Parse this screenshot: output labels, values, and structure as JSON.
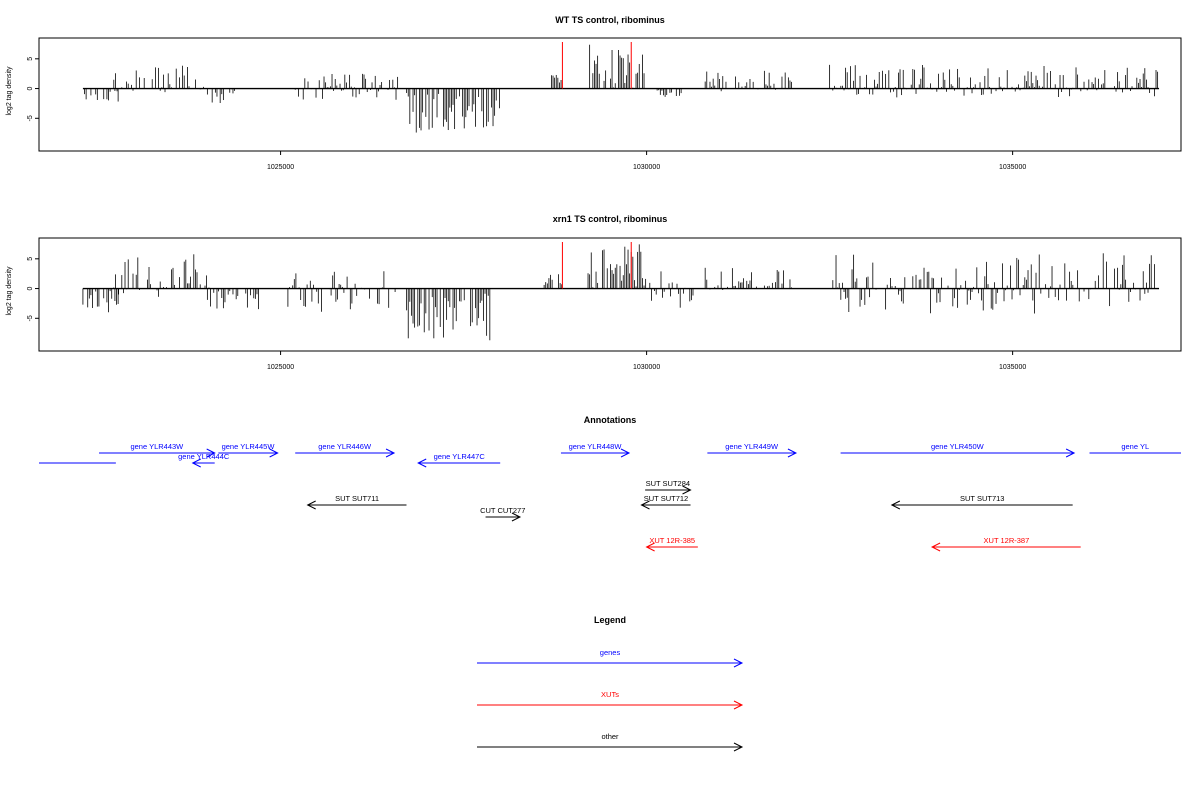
{
  "chart_data": [
    {
      "type": "bar",
      "title": "WT TS control, ribominus",
      "ylabel": "log2 tag density",
      "xlim": [
        1021700,
        1037300
      ],
      "ylim": [
        -10.5,
        8.5
      ],
      "yticks": [
        -5,
        0,
        5
      ],
      "xticks": [
        1025000,
        1030000,
        1035000
      ],
      "xtick_labels": [
        "1025000",
        "1030000",
        "1035000"
      ],
      "ytick_labels": [
        "-5",
        "0",
        "5"
      ],
      "highlight_color": "#ff0000",
      "highlight_x": [
        1028850,
        1029790
      ],
      "baseline_range": [
        1022300,
        1037000
      ],
      "segments": [
        {
          "start": 1022300,
          "end": 1022800,
          "min": -2.5,
          "max": 0
        },
        {
          "start": 1022700,
          "end": 1024000,
          "min": -1,
          "max": 4
        },
        {
          "start": 1024000,
          "end": 1024400,
          "min": -2.5,
          "max": 0.3
        },
        {
          "start": 1025200,
          "end": 1026600,
          "min": -2,
          "max": 2.5
        },
        {
          "start": 1026700,
          "end": 1028000,
          "min": -7.5,
          "max": -0.5
        },
        {
          "start": 1028700,
          "end": 1028850,
          "min": 0,
          "max": 2.5
        },
        {
          "start": 1029200,
          "end": 1030000,
          "min": 0,
          "max": 7.5
        },
        {
          "start": 1030100,
          "end": 1030500,
          "min": -1.5,
          "max": 0
        },
        {
          "start": 1030800,
          "end": 1032000,
          "min": -0.5,
          "max": 3
        },
        {
          "start": 1032500,
          "end": 1037000,
          "min": -1.5,
          "max": 4
        }
      ]
    },
    {
      "type": "bar",
      "title": "xrn1 TS control, ribominus",
      "ylabel": "log2 tag density",
      "xlim": [
        1021700,
        1037300
      ],
      "ylim": [
        -10.5,
        8.5
      ],
      "yticks": [
        -5,
        0,
        5
      ],
      "xticks": [
        1025000,
        1030000,
        1035000
      ],
      "xtick_labels": [
        "1025000",
        "1030000",
        "1035000"
      ],
      "ytick_labels": [
        "-5",
        "0",
        "5"
      ],
      "highlight_color": "#ff0000",
      "highlight_x": [
        1028850,
        1029790
      ],
      "baseline_range": [
        1022300,
        1037000
      ],
      "segments": [
        {
          "start": 1022300,
          "end": 1022800,
          "min": -4,
          "max": 0
        },
        {
          "start": 1022700,
          "end": 1024000,
          "min": -1.5,
          "max": 7
        },
        {
          "start": 1024000,
          "end": 1024700,
          "min": -3.5,
          "max": 0.5
        },
        {
          "start": 1025100,
          "end": 1026600,
          "min": -4,
          "max": 4
        },
        {
          "start": 1026700,
          "end": 1027900,
          "min": -9,
          "max": -0.5
        },
        {
          "start": 1028600,
          "end": 1028850,
          "min": 0,
          "max": 2.5
        },
        {
          "start": 1029200,
          "end": 1030000,
          "min": 0,
          "max": 7.5
        },
        {
          "start": 1030000,
          "end": 1030700,
          "min": -4,
          "max": 3
        },
        {
          "start": 1030800,
          "end": 1032000,
          "min": -0.5,
          "max": 3.5
        },
        {
          "start": 1032500,
          "end": 1037000,
          "min": -4.5,
          "max": 6
        }
      ]
    }
  ],
  "annotations": {
    "title": "Annotations",
    "colors": {
      "gene": "#0000ff",
      "xut": "#ff0000",
      "other": "#000000"
    },
    "features": [
      {
        "label": "",
        "type": "gene",
        "dir": "none",
        "x1": 1021700,
        "x2": 1022750,
        "row": "gene2"
      },
      {
        "label": "gene YLR443W",
        "type": "gene",
        "dir": "right",
        "x1": 1022520,
        "x2": 1024100,
        "row": "gene1"
      },
      {
        "label": "gene YLR444C",
        "type": "gene",
        "dir": "left",
        "x1": 1023800,
        "x2": 1024100,
        "row": "gene2"
      },
      {
        "label": "gene YLR445W",
        "type": "gene",
        "dir": "right",
        "x1": 1024150,
        "x2": 1024960,
        "row": "gene1"
      },
      {
        "label": "gene YLR446W",
        "type": "gene",
        "dir": "right",
        "x1": 1025200,
        "x2": 1026550,
        "row": "gene1"
      },
      {
        "label": "gene YLR447C",
        "type": "gene",
        "dir": "left",
        "x1": 1026880,
        "x2": 1028000,
        "row": "gene2"
      },
      {
        "label": "gene YLR448W",
        "type": "gene",
        "dir": "right",
        "x1": 1028830,
        "x2": 1029760,
        "row": "gene1"
      },
      {
        "label": "gene YLR449W",
        "type": "gene",
        "dir": "right",
        "x1": 1030830,
        "x2": 1032040,
        "row": "gene1"
      },
      {
        "label": "gene YLR450W",
        "type": "gene",
        "dir": "right",
        "x1": 1032650,
        "x2": 1035840,
        "row": "gene1"
      },
      {
        "label": "gene YL",
        "type": "gene",
        "dir": "none",
        "x1": 1036050,
        "x2": 1037300,
        "row": "gene1"
      },
      {
        "label": "SUT SUT711",
        "type": "other",
        "dir": "left",
        "x1": 1025370,
        "x2": 1026720,
        "row": "other1"
      },
      {
        "label": "CUT CUT277",
        "type": "other",
        "dir": "right",
        "x1": 1027800,
        "x2": 1028270,
        "row": "other2"
      },
      {
        "label": "SUT SUT284",
        "type": "other",
        "dir": "right",
        "x1": 1029980,
        "x2": 1030600,
        "row": "other0"
      },
      {
        "label": "SUT SUT712",
        "type": "other",
        "dir": "left",
        "x1": 1029930,
        "x2": 1030600,
        "row": "other1"
      },
      {
        "label": "SUT SUT713",
        "type": "other",
        "dir": "left",
        "x1": 1033350,
        "x2": 1035820,
        "row": "other1"
      },
      {
        "label": "XUT 12R-385",
        "type": "xut",
        "dir": "left",
        "x1": 1030000,
        "x2": 1030700,
        "row": "xut1"
      },
      {
        "label": "XUT 12R-387",
        "type": "xut",
        "dir": "left",
        "x1": 1033900,
        "x2": 1035930,
        "row": "xut1"
      }
    ]
  },
  "legend": {
    "title": "Legend",
    "items": [
      {
        "label": "genes",
        "color": "#0000ff"
      },
      {
        "label": "XUTs",
        "color": "#ff0000"
      },
      {
        "label": "other",
        "color": "#000000"
      }
    ]
  }
}
